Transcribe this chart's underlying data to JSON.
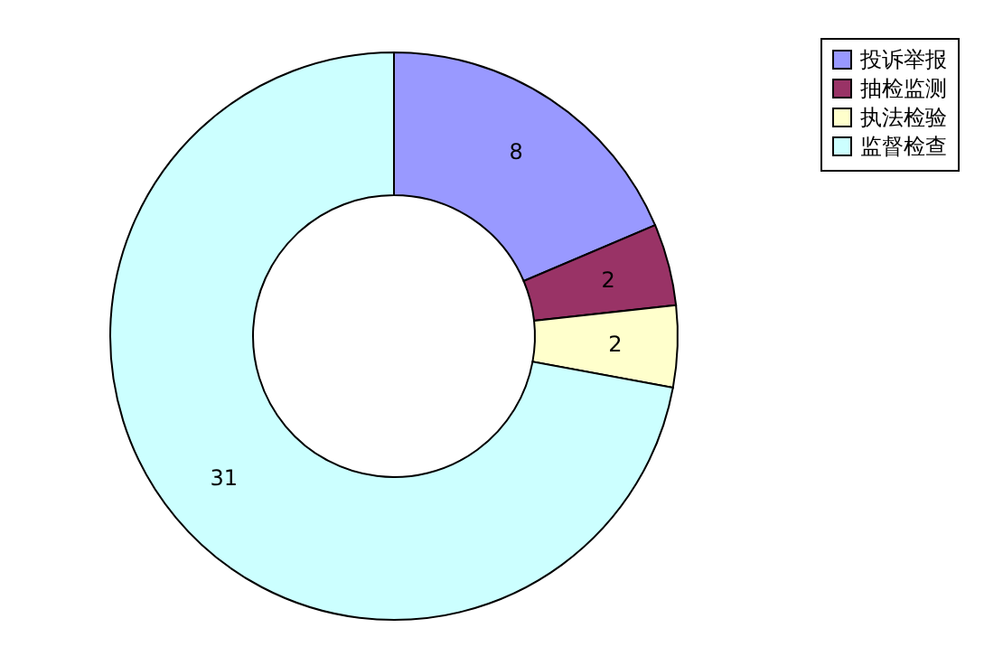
{
  "chart_data": {
    "type": "donut",
    "categories": [
      "投诉举报",
      "抽检监测",
      "执法检验",
      "监督检查"
    ],
    "values": [
      8,
      2,
      2,
      31
    ],
    "colors": [
      "#9999ff",
      "#993366",
      "#ffffcc",
      "#ccffff"
    ],
    "data_labels": true,
    "legend": "right"
  }
}
